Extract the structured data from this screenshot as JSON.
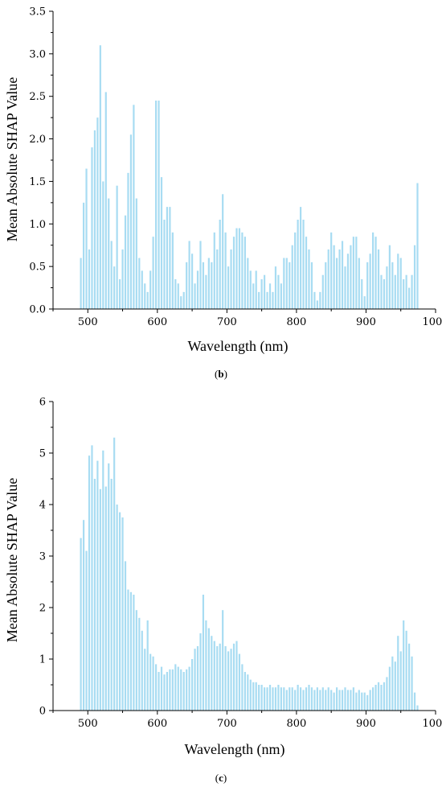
{
  "chart_data": [
    {
      "type": "bar",
      "panel_label": "(b)",
      "xlabel": "Wavelength (nm)",
      "ylabel": "Mean Absolute SHAP Value",
      "xlim": [
        450,
        1000
      ],
      "ylim": [
        0,
        3.5
      ],
      "xticks": [
        500,
        600,
        700,
        800,
        900,
        1000
      ],
      "yticks": [
        0.0,
        0.5,
        1.0,
        1.5,
        2.0,
        2.5,
        3.0,
        3.5
      ],
      "ytick_labels": [
        "0.0",
        "0.5",
        "1.0",
        "1.5",
        "2.0",
        "2.5",
        "3.0",
        "3.5"
      ],
      "bar_color": "#a8dcf2",
      "grid": false,
      "x": [
        490,
        494,
        498,
        502,
        506,
        510,
        514,
        518,
        522,
        526,
        530,
        534,
        538,
        542,
        546,
        550,
        554,
        558,
        562,
        566,
        570,
        574,
        578,
        582,
        586,
        590,
        594,
        598,
        602,
        606,
        610,
        614,
        618,
        622,
        626,
        630,
        634,
        638,
        642,
        646,
        650,
        654,
        658,
        662,
        666,
        670,
        674,
        678,
        682,
        686,
        690,
        694,
        698,
        702,
        706,
        710,
        714,
        718,
        722,
        726,
        730,
        734,
        738,
        742,
        746,
        750,
        754,
        758,
        762,
        766,
        770,
        774,
        778,
        782,
        786,
        790,
        794,
        798,
        802,
        806,
        810,
        814,
        818,
        822,
        826,
        830,
        834,
        838,
        842,
        846,
        850,
        854,
        858,
        862,
        866,
        870,
        874,
        878,
        882,
        886,
        890,
        894,
        898,
        902,
        906,
        910,
        914,
        918,
        922,
        926,
        930,
        934,
        938,
        942,
        946,
        950,
        954,
        958,
        962,
        966,
        970,
        974
      ],
      "values": [
        0.6,
        1.25,
        1.65,
        0.7,
        1.9,
        2.1,
        2.25,
        3.1,
        1.5,
        2.55,
        1.3,
        0.8,
        0.5,
        1.45,
        0.35,
        0.7,
        1.1,
        1.6,
        2.05,
        2.4,
        1.3,
        0.6,
        0.45,
        0.3,
        0.2,
        0.45,
        0.85,
        2.45,
        2.45,
        1.55,
        1.05,
        1.2,
        1.2,
        0.9,
        0.35,
        0.3,
        0.15,
        0.2,
        0.55,
        0.8,
        0.65,
        0.3,
        0.45,
        0.8,
        0.55,
        0.4,
        0.6,
        0.55,
        0.9,
        0.7,
        1.05,
        1.35,
        0.9,
        0.5,
        0.7,
        0.85,
        0.95,
        0.95,
        0.9,
        0.85,
        0.6,
        0.45,
        0.3,
        0.45,
        0.2,
        0.35,
        0.4,
        0.2,
        0.3,
        0.2,
        0.5,
        0.4,
        0.3,
        0.6,
        0.6,
        0.55,
        0.75,
        0.9,
        1.05,
        1.2,
        1.05,
        0.85,
        0.7,
        0.55,
        0.2,
        0.1,
        0.2,
        0.4,
        0.55,
        0.7,
        0.9,
        0.75,
        0.6,
        0.7,
        0.8,
        0.5,
        0.65,
        0.75,
        0.85,
        0.85,
        0.6,
        0.35,
        0.15,
        0.55,
        0.65,
        0.9,
        0.85,
        0.7,
        0.4,
        0.35,
        0.5,
        0.75,
        0.55,
        0.4,
        0.65,
        0.6,
        0.35,
        0.4,
        0.25,
        0.4,
        0.75,
        1.48
      ]
    },
    {
      "type": "bar",
      "panel_label": "(c)",
      "xlabel": "Wavelength (nm)",
      "ylabel": "Mean Absolute SHAP Value",
      "xlim": [
        450,
        1000
      ],
      "ylim": [
        0,
        6
      ],
      "xticks": [
        500,
        600,
        700,
        800,
        900,
        1000
      ],
      "yticks": [
        0,
        1,
        2,
        3,
        4,
        5,
        6
      ],
      "ytick_labels": [
        "0",
        "1",
        "2",
        "3",
        "4",
        "5",
        "6"
      ],
      "bar_color": "#a8dcf2",
      "grid": false,
      "x": [
        490,
        494,
        498,
        502,
        506,
        510,
        514,
        518,
        522,
        526,
        530,
        534,
        538,
        542,
        546,
        550,
        554,
        558,
        562,
        566,
        570,
        574,
        578,
        582,
        586,
        590,
        594,
        598,
        602,
        606,
        610,
        614,
        618,
        622,
        626,
        630,
        634,
        638,
        642,
        646,
        650,
        654,
        658,
        662,
        666,
        670,
        674,
        678,
        682,
        686,
        690,
        694,
        698,
        702,
        706,
        710,
        714,
        718,
        722,
        726,
        730,
        734,
        738,
        742,
        746,
        750,
        754,
        758,
        762,
        766,
        770,
        774,
        778,
        782,
        786,
        790,
        794,
        798,
        802,
        806,
        810,
        814,
        818,
        822,
        826,
        830,
        834,
        838,
        842,
        846,
        850,
        854,
        858,
        862,
        866,
        870,
        874,
        878,
        882,
        886,
        890,
        894,
        898,
        902,
        906,
        910,
        914,
        918,
        922,
        926,
        930,
        934,
        938,
        942,
        946,
        950,
        954,
        958,
        962,
        966,
        970,
        974
      ],
      "values": [
        3.35,
        3.7,
        3.1,
        4.95,
        5.15,
        4.5,
        4.85,
        4.3,
        5.05,
        4.35,
        4.8,
        4.5,
        5.3,
        4.0,
        3.85,
        3.75,
        2.9,
        2.35,
        2.3,
        2.25,
        1.95,
        1.8,
        1.55,
        1.2,
        1.75,
        1.1,
        1.05,
        0.9,
        0.75,
        0.85,
        0.7,
        0.75,
        0.8,
        0.8,
        0.9,
        0.85,
        0.8,
        0.75,
        0.8,
        0.85,
        1.0,
        1.2,
        1.25,
        1.5,
        2.25,
        1.75,
        1.6,
        1.45,
        1.35,
        1.25,
        1.3,
        1.95,
        1.25,
        1.15,
        1.2,
        1.3,
        1.35,
        1.1,
        0.9,
        0.75,
        0.7,
        0.6,
        0.55,
        0.55,
        0.5,
        0.5,
        0.45,
        0.45,
        0.5,
        0.45,
        0.45,
        0.5,
        0.45,
        0.45,
        0.4,
        0.45,
        0.45,
        0.4,
        0.5,
        0.45,
        0.4,
        0.45,
        0.5,
        0.45,
        0.4,
        0.45,
        0.4,
        0.45,
        0.4,
        0.45,
        0.4,
        0.35,
        0.45,
        0.4,
        0.4,
        0.45,
        0.4,
        0.4,
        0.45,
        0.35,
        0.4,
        0.35,
        0.35,
        0.3,
        0.4,
        0.45,
        0.5,
        0.55,
        0.5,
        0.55,
        0.65,
        0.85,
        1.05,
        0.95,
        1.45,
        1.15,
        1.75,
        1.55,
        1.3,
        1.05,
        0.35,
        0.1
      ]
    }
  ]
}
